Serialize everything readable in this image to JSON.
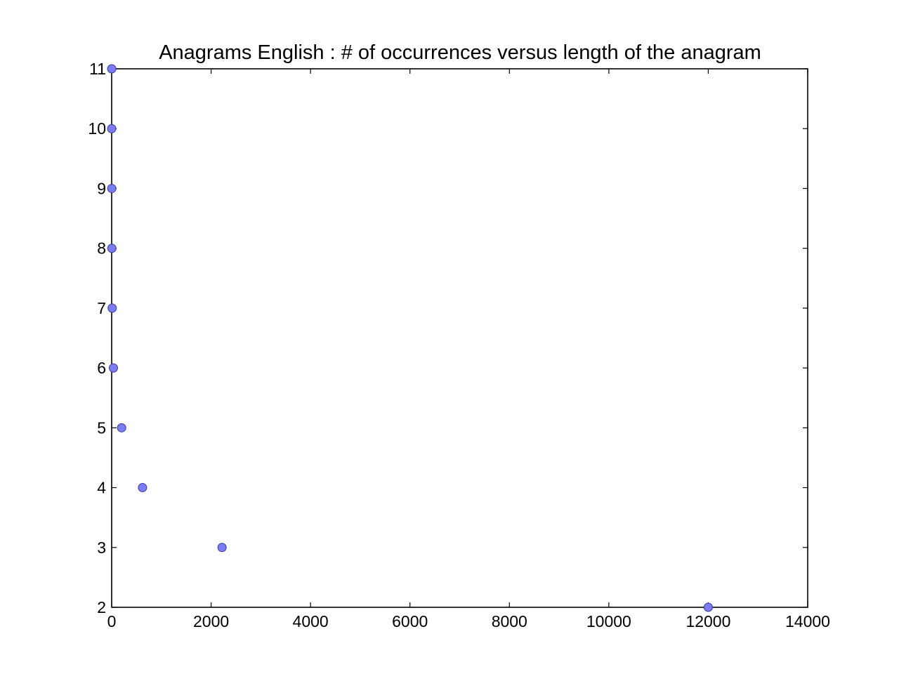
{
  "chart_data": {
    "type": "scatter",
    "title": "Anagrams English : # of occurrences versus length of the anagram",
    "xlabel": "",
    "ylabel": "",
    "xlim": [
      0,
      14000
    ],
    "ylim": [
      2,
      11
    ],
    "xticks": [
      0,
      2000,
      4000,
      6000,
      8000,
      10000,
      12000,
      14000
    ],
    "xtick_labels": [
      "0",
      "2000",
      "4000",
      "6000",
      "8000",
      "10000",
      "12000",
      "14000"
    ],
    "yticks": [
      2,
      3,
      4,
      5,
      6,
      7,
      8,
      9,
      10,
      11
    ],
    "ytick_labels": [
      "2",
      "3",
      "4",
      "5",
      "6",
      "7",
      "8",
      "9",
      "10",
      "11"
    ],
    "grid": false,
    "legend": "none",
    "marker_color": "#7b7bf2",
    "series": [
      {
        "x": [
          12000,
          2220,
          620,
          200,
          35,
          10,
          4,
          2,
          1,
          1
        ],
        "y": [
          2,
          3,
          4,
          5,
          6,
          7,
          8,
          9,
          10,
          11
        ]
      }
    ]
  }
}
